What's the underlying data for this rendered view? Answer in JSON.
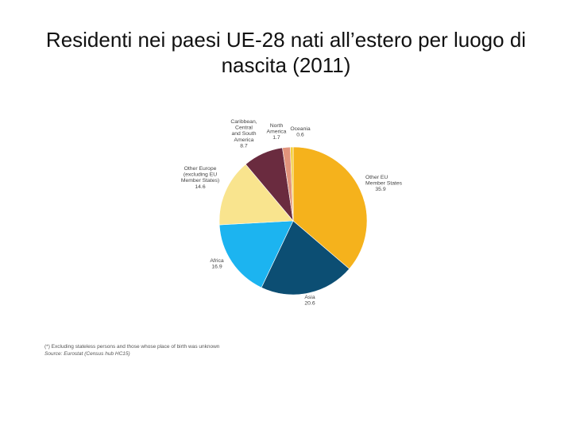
{
  "slide": {
    "title_line1": "Residenti nei paesi UE-28 nati all’estero per luogo di",
    "title_line2": "nascita (2011)"
  },
  "chart_data": {
    "type": "pie",
    "unit": "%",
    "slices": [
      {
        "label": "Other EU Member States",
        "value": 35.9,
        "color": "#F5B21C"
      },
      {
        "label": "Asia",
        "value": 20.6,
        "color": "#0C4E73"
      },
      {
        "label": "Africa",
        "value": 16.9,
        "color": "#1CB4F0"
      },
      {
        "label": "Other Europe (excluding EU Member States)",
        "value": 14.6,
        "color": "#F9E48E"
      },
      {
        "label": "Caribbean, Central and South America",
        "value": 8.7,
        "color": "#6A2B3F"
      },
      {
        "label": "North America",
        "value": 1.7,
        "color": "#E2947C"
      },
      {
        "label": "Oceania",
        "value": 0.6,
        "color": "#F2D03C"
      }
    ]
  },
  "footnotes": {
    "note": "(*) Excluding stateless persons and those whose place of birth was unknown",
    "source": "Source: Eurostat (Census hub HC15)"
  }
}
